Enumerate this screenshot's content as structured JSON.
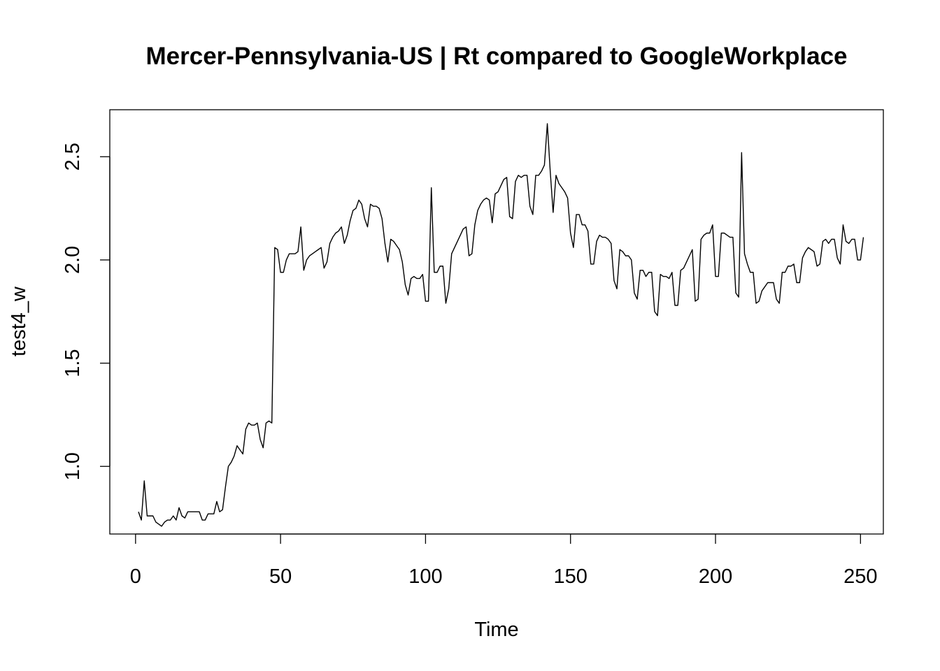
{
  "chart_data": {
    "type": "line",
    "title": "Mercer-Pennsylvania-US | Rt compared to GoogleWorkplace",
    "xlabel": "Time",
    "ylabel": "test4_w",
    "xlim": [
      -8.88,
      257.88
    ],
    "ylim": [
      0.6724,
      2.7276
    ],
    "x_ticks": [
      0,
      50,
      100,
      150,
      200,
      250
    ],
    "x_tick_labels": [
      "0",
      "50",
      "100",
      "150",
      "200",
      "250"
    ],
    "y_ticks": [
      1.0,
      1.5,
      2.0,
      2.5
    ],
    "y_tick_labels": [
      "1.0",
      "1.5",
      "2.0",
      "2.5"
    ],
    "grid": false,
    "legend": "none",
    "line_color": "#000000",
    "series": [
      {
        "x_start": 1,
        "values": [
          0.78,
          0.74,
          0.93,
          0.76,
          0.76,
          0.76,
          0.73,
          0.72,
          0.71,
          0.73,
          0.74,
          0.74,
          0.76,
          0.74,
          0.8,
          0.76,
          0.75,
          0.78,
          0.78,
          0.78,
          0.78,
          0.78,
          0.74,
          0.74,
          0.77,
          0.77,
          0.77,
          0.83,
          0.78,
          0.79,
          0.9,
          1.0,
          1.02,
          1.05,
          1.1,
          1.08,
          1.06,
          1.18,
          1.21,
          1.2,
          1.2,
          1.21,
          1.13,
          1.09,
          1.21,
          1.22,
          1.21,
          2.06,
          2.05,
          1.94,
          1.94,
          2.0,
          2.03,
          2.03,
          2.03,
          2.04,
          2.16,
          1.95,
          2.0,
          2.02,
          2.03,
          2.04,
          2.05,
          2.06,
          1.96,
          1.99,
          2.08,
          2.11,
          2.13,
          2.14,
          2.16,
          2.08,
          2.12,
          2.19,
          2.24,
          2.25,
          2.29,
          2.27,
          2.2,
          2.16,
          2.27,
          2.26,
          2.26,
          2.25,
          2.2,
          2.08,
          1.99,
          2.1,
          2.09,
          2.07,
          2.05,
          1.99,
          1.88,
          1.83,
          1.91,
          1.92,
          1.91,
          1.91,
          1.93,
          1.8,
          1.8,
          2.35,
          1.94,
          1.94,
          1.97,
          1.97,
          1.79,
          1.86,
          2.03,
          2.06,
          2.09,
          2.12,
          2.15,
          2.16,
          2.02,
          2.03,
          2.17,
          2.24,
          2.27,
          2.29,
          2.3,
          2.29,
          2.18,
          2.32,
          2.33,
          2.36,
          2.39,
          2.4,
          2.21,
          2.2,
          2.38,
          2.41,
          2.4,
          2.41,
          2.41,
          2.26,
          2.22,
          2.41,
          2.41,
          2.43,
          2.46,
          2.66,
          2.43,
          2.23,
          2.41,
          2.37,
          2.35,
          2.33,
          2.3,
          2.13,
          2.06,
          2.22,
          2.22,
          2.17,
          2.17,
          2.14,
          1.98,
          1.98,
          2.09,
          2.12,
          2.11,
          2.11,
          2.1,
          2.08,
          1.9,
          1.86,
          2.05,
          2.04,
          2.02,
          2.02,
          2.0,
          1.84,
          1.81,
          1.95,
          1.95,
          1.92,
          1.94,
          1.94,
          1.75,
          1.73,
          1.93,
          1.92,
          1.92,
          1.91,
          1.94,
          1.78,
          1.78,
          1.95,
          1.96,
          1.99,
          2.02,
          2.05,
          1.8,
          1.81,
          2.1,
          2.12,
          2.13,
          2.13,
          2.17,
          1.92,
          1.92,
          2.13,
          2.13,
          2.12,
          2.11,
          2.11,
          1.84,
          1.82,
          2.52,
          2.03,
          1.98,
          1.94,
          1.94,
          1.79,
          1.8,
          1.85,
          1.87,
          1.89,
          1.89,
          1.89,
          1.81,
          1.79,
          1.94,
          1.94,
          1.97,
          1.97,
          1.98,
          1.89,
          1.89,
          2.01,
          2.04,
          2.06,
          2.05,
          2.04,
          1.97,
          1.98,
          2.09,
          2.1,
          2.08,
          2.1,
          2.1,
          2.01,
          1.98,
          2.17,
          2.09,
          2.08,
          2.1,
          2.1,
          2.0,
          2.0,
          2.11
        ]
      }
    ]
  }
}
